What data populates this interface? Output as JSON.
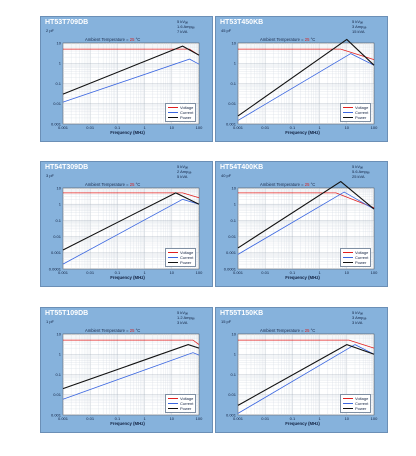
{
  "panels": [
    {
      "title": "HT53T709DB",
      "cap": "2    pF",
      "specs": [
        "5   kVₐₑ",
        "1.6   Ampₐₑ",
        "7   kVA"
      ],
      "ambient": {
        "label": "Ambient Temperature =",
        "value": "25",
        "unit": "°C"
      },
      "xticks": [
        "0.001",
        "0.01",
        "0.1",
        "1",
        "10",
        "100"
      ],
      "yticks": [
        "10",
        "1",
        "0.1",
        "0.01",
        "0.001"
      ],
      "xlabel": "Frequency (MHz)",
      "legend": [
        "Voltage",
        "Current",
        "Power"
      ]
    },
    {
      "title": "HT53T450KB",
      "cap": "45    pF",
      "specs": [
        "5   kVₐₑ",
        "3   Ampₐₑ",
        "15   kVA"
      ],
      "ambient": {
        "label": "Ambient Temperature =",
        "value": "25",
        "unit": "°C"
      },
      "xticks": [
        "0.001",
        "0.01",
        "0.1",
        "1",
        "10",
        "100"
      ],
      "yticks": [
        "10",
        "1",
        "0.1",
        "0.01",
        "0.001"
      ],
      "xlabel": "Frequency (MHz)",
      "legend": [
        "Voltage",
        "Current",
        "Power"
      ]
    },
    {
      "title": "HT54T309DB",
      "cap": "3    pF",
      "specs": [
        "5   kVₐₑ",
        "2   Ampₐₑ",
        "5   kVA"
      ],
      "ambient": {
        "label": "Ambient Temperature =",
        "value": "25",
        "unit": "°C"
      },
      "xticks": [
        "0.001",
        "0.01",
        "0.1",
        "1",
        "10",
        "100"
      ],
      "yticks": [
        "10",
        "1",
        "0.1",
        "0.01",
        "0.001",
        "0.0001"
      ],
      "xlabel": "Frequency (MHz)",
      "legend": [
        "Voltage",
        "Current",
        "Power"
      ]
    },
    {
      "title": "HT54T400KB",
      "cap": "40    pF",
      "specs": [
        "5   kVₐₑ",
        "5.6   Ampₐₑ",
        "25   kVA"
      ],
      "ambient": {
        "label": "Ambient Temperature =",
        "value": "25",
        "unit": "°C"
      },
      "xticks": [
        "0.001",
        "0.01",
        "0.1",
        "1",
        "10",
        "100"
      ],
      "yticks": [
        "10",
        "1",
        "0.1",
        "0.01",
        "0.001",
        "0.0001"
      ],
      "xlabel": "Frequency (MHz)",
      "legend": [
        "Voltage",
        "Current",
        "Power"
      ]
    },
    {
      "title": "HT55T109DB",
      "cap": "1    pF",
      "specs": [
        "5   kVₐₑ",
        "1.2   Ampₐₑ",
        "3   kVA"
      ],
      "ambient": {
        "label": "Ambient Temperature =",
        "value": "25",
        "unit": "°C"
      },
      "xticks": [
        "0.001",
        "0.01",
        "0.1",
        "1",
        "10",
        "100"
      ],
      "yticks": [
        "10",
        "1",
        "0.1",
        "0.01",
        "0.001"
      ],
      "xlabel": "Frequency (MHz)",
      "legend": [
        "Voltage",
        "Current",
        "Power"
      ]
    },
    {
      "title": "HT55T150KB",
      "cap": "15    pF",
      "specs": [
        "5   kVₐₑ",
        "3   Ampₐₑ",
        "3   kVA"
      ],
      "ambient": {
        "label": "Ambient Temperature =",
        "value": "25",
        "unit": "°C"
      },
      "xticks": [
        "0.001",
        "0.01",
        "0.1",
        "1",
        "10",
        "100"
      ],
      "yticks": [
        "10",
        "1",
        "0.1",
        "0.01",
        "0.001"
      ],
      "xlabel": "Frequency (MHz)",
      "legend": [
        "Voltage",
        "Current",
        "Power"
      ]
    }
  ],
  "colors": {
    "voltage": "#e02020",
    "current": "#3a66e0",
    "power": "#111111",
    "ambient_value": "#d42020"
  },
  "chart_data": [
    {
      "type": "line",
      "title": "HT53T709DB",
      "xlabel": "Frequency (MHz)",
      "ylabel": "",
      "x_scale": "log",
      "y_scale": "log",
      "xlim": [
        0.001,
        100
      ],
      "ylim": [
        0.001,
        10
      ],
      "grid": true,
      "legend_placement": "bottom-right",
      "series": [
        {
          "name": "Voltage",
          "x": [
            0.001,
            45,
            100
          ],
          "y": [
            5,
            5,
            2.5
          ]
        },
        {
          "name": "Current",
          "x": [
            0.001,
            45,
            100
          ],
          "y": [
            0.012,
            1.6,
            0.9
          ]
        },
        {
          "name": "Power",
          "x": [
            0.001,
            25,
            100
          ],
          "y": [
            0.03,
            7,
            2.5
          ]
        }
      ]
    },
    {
      "type": "line",
      "title": "HT53T450KB",
      "xlabel": "Frequency (MHz)",
      "ylabel": "",
      "x_scale": "log",
      "y_scale": "log",
      "xlim": [
        0.001,
        100
      ],
      "ylim": [
        0.001,
        10
      ],
      "grid": true,
      "legend_placement": "bottom-right",
      "series": [
        {
          "name": "Voltage",
          "x": [
            0.001,
            6,
            100
          ],
          "y": [
            5,
            5,
            1.5
          ]
        },
        {
          "name": "Current",
          "x": [
            0.001,
            14,
            100
          ],
          "y": [
            0.0015,
            3,
            0.8
          ]
        },
        {
          "name": "Power",
          "x": [
            0.001,
            10,
            100
          ],
          "y": [
            0.0025,
            15,
            0.8
          ]
        }
      ]
    },
    {
      "type": "line",
      "title": "HT54T309DB",
      "xlabel": "Frequency (MHz)",
      "ylabel": "",
      "x_scale": "log",
      "y_scale": "log",
      "xlim": [
        0.001,
        100
      ],
      "ylim": [
        0.0001,
        10
      ],
      "grid": true,
      "legend_placement": "bottom-right",
      "series": [
        {
          "name": "Voltage",
          "x": [
            0.001,
            25,
            100
          ],
          "y": [
            5,
            5,
            2.5
          ]
        },
        {
          "name": "Current",
          "x": [
            0.001,
            25,
            100
          ],
          "y": [
            0.0002,
            2,
            1
          ]
        },
        {
          "name": "Power",
          "x": [
            0.001,
            14,
            100
          ],
          "y": [
            0.0015,
            5,
            1
          ]
        }
      ]
    },
    {
      "type": "line",
      "title": "HT54T400KB",
      "xlabel": "Frequency (MHz)",
      "ylabel": "",
      "x_scale": "log",
      "y_scale": "log",
      "xlim": [
        0.001,
        100
      ],
      "ylim": [
        0.0001,
        10
      ],
      "grid": true,
      "legend_placement": "bottom-right",
      "series": [
        {
          "name": "Voltage",
          "x": [
            0.001,
            4,
            100
          ],
          "y": [
            5,
            5,
            0.6
          ]
        },
        {
          "name": "Current",
          "x": [
            0.001,
            8,
            100
          ],
          "y": [
            0.0008,
            5.6,
            0.5
          ]
        },
        {
          "name": "Power",
          "x": [
            0.001,
            6,
            100
          ],
          "y": [
            0.002,
            25,
            0.5
          ]
        }
      ]
    },
    {
      "type": "line",
      "title": "HT55T109DB",
      "xlabel": "Frequency (MHz)",
      "ylabel": "",
      "x_scale": "log",
      "y_scale": "log",
      "xlim": [
        0.001,
        100
      ],
      "ylim": [
        0.001,
        10
      ],
      "grid": true,
      "legend_placement": "bottom-right",
      "series": [
        {
          "name": "Voltage",
          "x": [
            0.001,
            60,
            100
          ],
          "y": [
            5,
            5,
            3
          ]
        },
        {
          "name": "Current",
          "x": [
            0.001,
            60,
            100
          ],
          "y": [
            0.006,
            1.2,
            0.9
          ]
        },
        {
          "name": "Power",
          "x": [
            0.001,
            40,
            100
          ],
          "y": [
            0.02,
            3,
            2
          ]
        }
      ]
    },
    {
      "type": "line",
      "title": "HT55T150KB",
      "xlabel": "Frequency (MHz)",
      "ylabel": "",
      "x_scale": "log",
      "y_scale": "log",
      "xlim": [
        0.001,
        100
      ],
      "ylim": [
        0.001,
        10
      ],
      "grid": true,
      "legend_placement": "bottom-right",
      "series": [
        {
          "name": "Voltage",
          "x": [
            0.001,
            12,
            100
          ],
          "y": [
            5,
            5,
            2
          ]
        },
        {
          "name": "Current",
          "x": [
            0.001,
            20,
            100
          ],
          "y": [
            0.0012,
            3,
            1
          ]
        },
        {
          "name": "Power",
          "x": [
            0.001,
            10,
            100
          ],
          "y": [
            0.003,
            3,
            1
          ]
        }
      ]
    }
  ]
}
